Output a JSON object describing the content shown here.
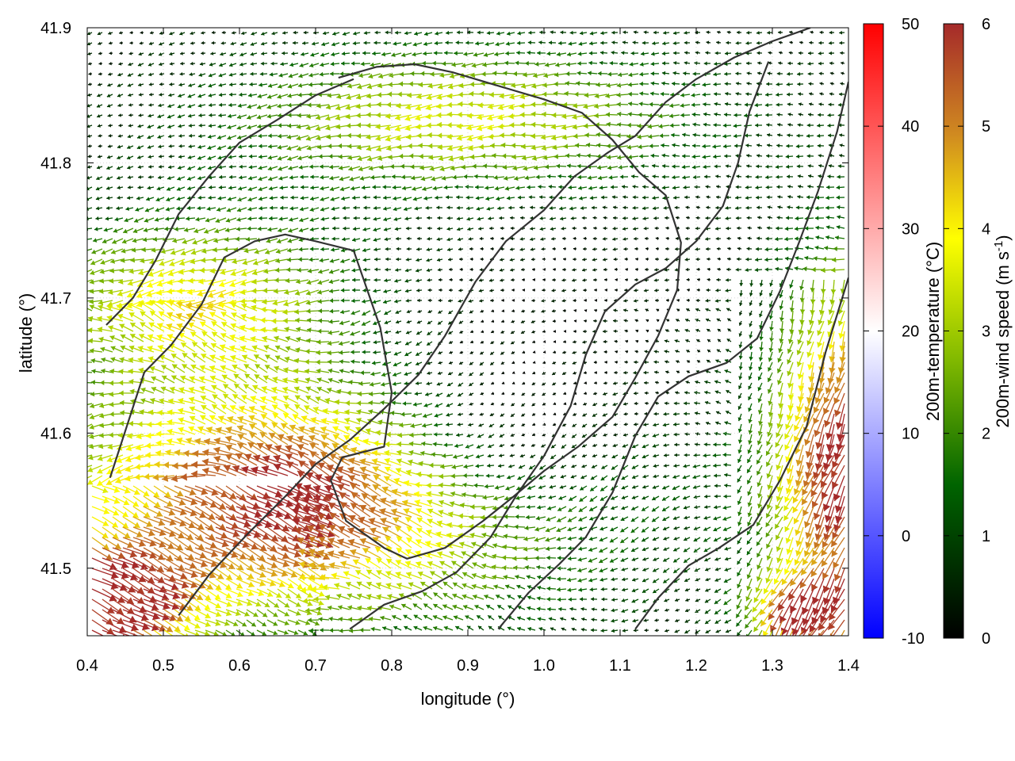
{
  "chart_data": {
    "type": "vector-field",
    "xlabel": "longitude (°)",
    "ylabel": "latitude (°)",
    "xlim": [
      0.4,
      1.4
    ],
    "ylim": [
      41.45,
      41.9
    ],
    "x_ticks": [
      0.4,
      0.5,
      0.6,
      0.7,
      0.8,
      0.9,
      1.0,
      1.1,
      1.2,
      1.3,
      1.4
    ],
    "x_tick_labels": [
      "0.4",
      "0.5",
      "0.6",
      "0.7",
      "0.8",
      "0.9",
      "1.0",
      "1.1",
      "1.2",
      "1.3",
      "1.4"
    ],
    "y_ticks": [
      41.5,
      41.6,
      41.7,
      41.8,
      41.9
    ],
    "y_tick_labels": [
      "41.5",
      "41.6",
      "41.7",
      "41.8",
      "41.9"
    ],
    "grid": true,
    "temperature_colorbar": {
      "label": "200m-temperature (°C)",
      "range": [
        -10,
        50
      ],
      "ticks": [
        -10,
        0,
        10,
        20,
        30,
        40,
        50
      ],
      "tick_labels": [
        "-10",
        "0",
        "10",
        "20",
        "30",
        "40",
        "50"
      ],
      "colors": [
        "#0000ff",
        "#ffffff",
        "#ff0000"
      ]
    },
    "wind_colorbar": {
      "label_prefix": "200m-wind speed (m s",
      "label_exponent": "-1",
      "label_suffix": ")",
      "range": [
        0,
        6
      ],
      "ticks": [
        0,
        1,
        2,
        3,
        4,
        5,
        6
      ],
      "tick_labels": [
        "0",
        "1",
        "2",
        "3",
        "4",
        "5",
        "6"
      ],
      "colors": [
        "#000000",
        "#006400",
        "#7fb800",
        "#ffff00",
        "#d08a20",
        "#a52a2a"
      ]
    },
    "coastline_color": "#333333",
    "contours": [
      [
        [
          0.43,
          41.567
        ],
        [
          0.452,
          41.605
        ],
        [
          0.475,
          41.645
        ],
        [
          0.51,
          41.665
        ],
        [
          0.55,
          41.695
        ],
        [
          0.58,
          41.73
        ],
        [
          0.62,
          41.742
        ],
        [
          0.66,
          41.747
        ],
        [
          0.7,
          41.742
        ],
        [
          0.75,
          41.735
        ],
        [
          0.785,
          41.678
        ],
        [
          0.8,
          41.63
        ],
        [
          0.79,
          41.59
        ],
        [
          0.735,
          41.582
        ],
        [
          0.72,
          41.565
        ],
        [
          0.74,
          41.535
        ],
        [
          0.79,
          41.515
        ],
        [
          0.82,
          41.507
        ],
        [
          0.87,
          41.515
        ],
        [
          0.92,
          41.535
        ],
        [
          0.96,
          41.553
        ],
        [
          1.0,
          41.572
        ],
        [
          1.045,
          41.59
        ],
        [
          1.09,
          41.612
        ],
        [
          1.12,
          41.641
        ],
        [
          1.15,
          41.672
        ],
        [
          1.175,
          41.706
        ],
        [
          1.18,
          41.741
        ],
        [
          1.16,
          41.776
        ],
        [
          1.125,
          41.793
        ],
        [
          1.09,
          41.817
        ],
        [
          1.05,
          41.837
        ],
        [
          1.0,
          41.847
        ],
        [
          0.94,
          41.857
        ],
        [
          0.88,
          41.867
        ],
        [
          0.83,
          41.873
        ],
        [
          0.78,
          41.871
        ],
        [
          0.73,
          41.863
        ]
      ],
      [
        [
          0.425,
          41.68
        ],
        [
          0.46,
          41.7
        ],
        [
          0.49,
          41.728
        ],
        [
          0.52,
          41.762
        ],
        [
          0.56,
          41.79
        ],
        [
          0.6,
          41.815
        ],
        [
          0.65,
          41.832
        ],
        [
          0.7,
          41.85
        ],
        [
          0.75,
          41.862
        ]
      ],
      [
        [
          0.52,
          41.465
        ],
        [
          0.56,
          41.495
        ],
        [
          0.61,
          41.525
        ],
        [
          0.66,
          41.553
        ],
        [
          0.7,
          41.577
        ],
        [
          0.745,
          41.595
        ],
        [
          0.79,
          41.618
        ],
        [
          0.835,
          41.643
        ],
        [
          0.87,
          41.672
        ],
        [
          0.91,
          41.712
        ],
        [
          0.95,
          41.742
        ],
        [
          1.0,
          41.765
        ],
        [
          1.04,
          41.79
        ],
        [
          1.085,
          41.808
        ],
        [
          1.12,
          41.82
        ],
        [
          1.16,
          41.845
        ],
        [
          1.2,
          41.862
        ],
        [
          1.25,
          41.878
        ],
        [
          1.3,
          41.89
        ],
        [
          1.35,
          41.9
        ]
      ],
      [
        [
          0.745,
          41.455
        ],
        [
          0.79,
          41.473
        ],
        [
          0.84,
          41.483
        ],
        [
          0.885,
          41.497
        ],
        [
          0.93,
          41.523
        ],
        [
          0.965,
          41.555
        ],
        [
          1.0,
          41.583
        ],
        [
          1.035,
          41.62
        ],
        [
          1.055,
          41.658
        ],
        [
          1.08,
          41.69
        ],
        [
          1.12,
          41.71
        ],
        [
          1.16,
          41.722
        ],
        [
          1.2,
          41.742
        ],
        [
          1.235,
          41.768
        ],
        [
          1.255,
          41.8
        ],
        [
          1.27,
          41.838
        ],
        [
          1.295,
          41.875
        ]
      ],
      [
        [
          0.94,
          41.455
        ],
        [
          0.98,
          41.482
        ],
        [
          1.02,
          41.503
        ],
        [
          1.055,
          41.523
        ],
        [
          1.09,
          41.556
        ],
        [
          1.12,
          41.598
        ],
        [
          1.15,
          41.627
        ],
        [
          1.19,
          41.642
        ],
        [
          1.24,
          41.652
        ],
        [
          1.28,
          41.67
        ],
        [
          1.31,
          41.705
        ],
        [
          1.335,
          41.741
        ],
        [
          1.36,
          41.779
        ],
        [
          1.385,
          41.823
        ],
        [
          1.4,
          41.86
        ]
      ],
      [
        [
          1.12,
          41.455
        ],
        [
          1.15,
          41.478
        ],
        [
          1.19,
          41.502
        ],
        [
          1.23,
          41.515
        ],
        [
          1.275,
          41.532
        ],
        [
          1.31,
          41.565
        ],
        [
          1.345,
          41.605
        ],
        [
          1.37,
          41.66
        ],
        [
          1.4,
          41.715
        ]
      ]
    ]
  }
}
